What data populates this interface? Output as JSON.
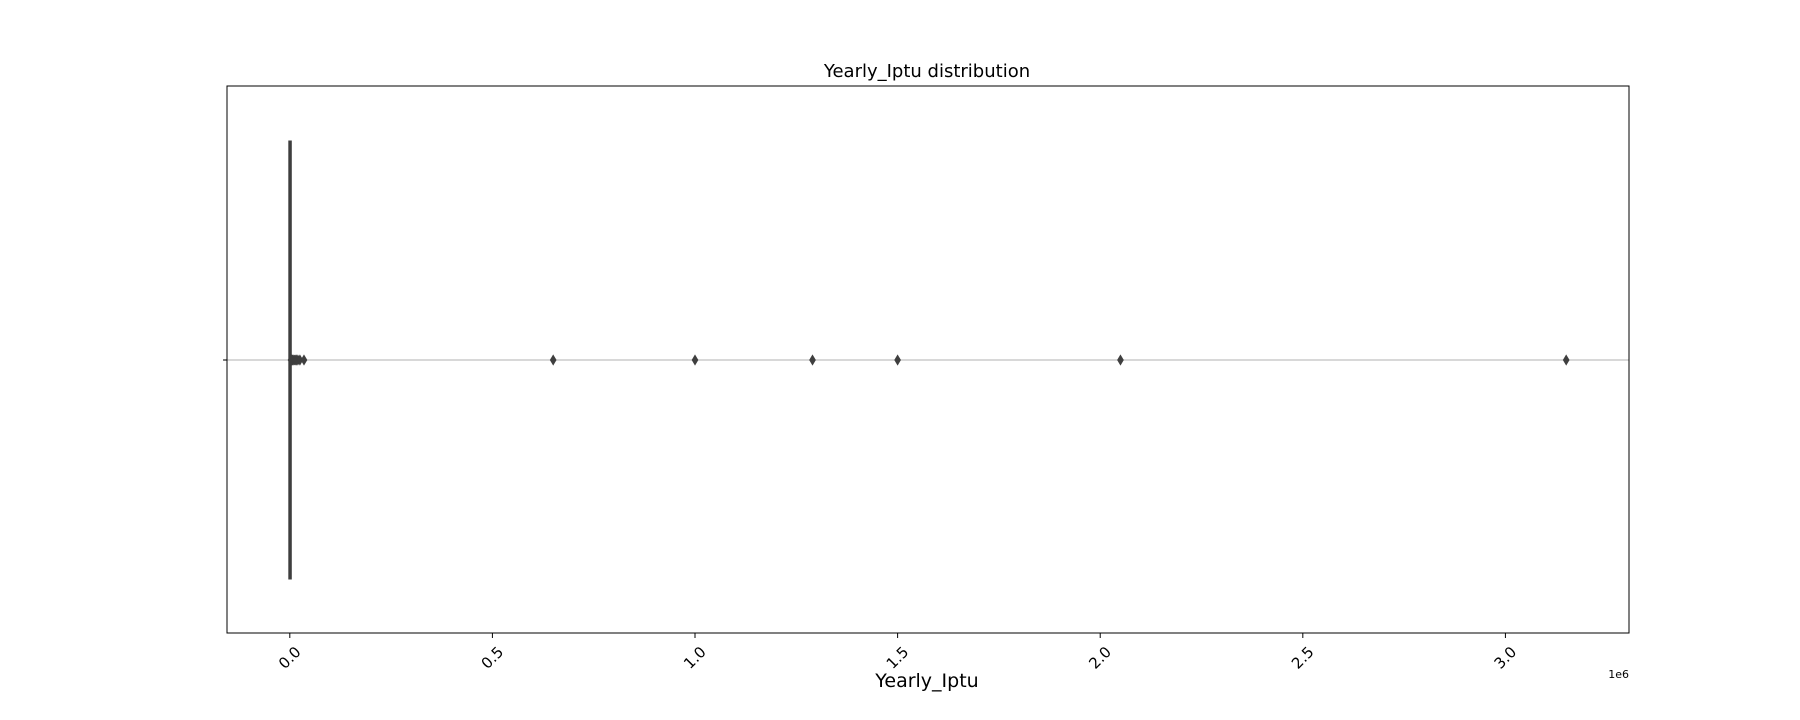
{
  "chart_data": {
    "type": "boxplot",
    "orientation": "horizontal",
    "title": "Yearly_Iptu distribution",
    "xlabel": "Yearly_Iptu",
    "x_offset_label": "1e6",
    "xlim": [
      -0.155,
      3.305
    ],
    "x_ticks": [
      0.0,
      0.5,
      1.0,
      1.5,
      2.0,
      2.5,
      3.0
    ],
    "x_tick_labels": [
      "0.0",
      "0.5",
      "1.0",
      "1.5",
      "2.0",
      "2.5",
      "3.0"
    ],
    "tick_label_rotation": -45,
    "grid": "none",
    "box": {
      "whisker_low": 0.0,
      "q1": 0.0,
      "median": 0.0,
      "q3": 0.0,
      "whisker_high": 0.001
    },
    "outliers": [
      0.003,
      0.005,
      0.007,
      0.01,
      0.013,
      0.016,
      0.02,
      0.025,
      0.035,
      0.65,
      1.0,
      1.29,
      1.5,
      2.05,
      3.15
    ],
    "colors": {
      "box": "#3f3f3f",
      "median_line": "#c0c0c0",
      "axes": "#000000"
    }
  }
}
